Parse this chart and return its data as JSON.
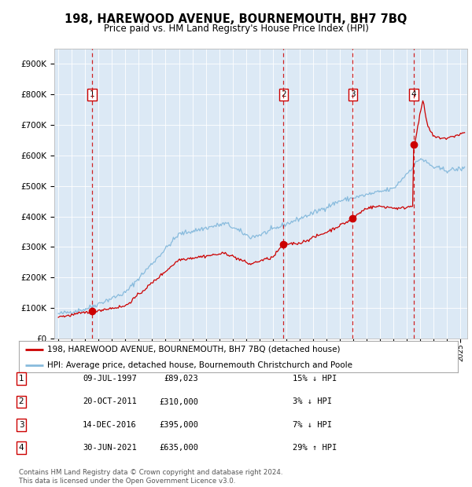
{
  "title": "198, HAREWOOD AVENUE, BOURNEMOUTH, BH7 7BQ",
  "subtitle": "Price paid vs. HM Land Registry's House Price Index (HPI)",
  "plot_bg": "#dce9f5",
  "xlim": [
    1994.7,
    2025.5
  ],
  "ylim": [
    0,
    950000
  ],
  "yticks": [
    0,
    100000,
    200000,
    300000,
    400000,
    500000,
    600000,
    700000,
    800000,
    900000
  ],
  "sale_dates": [
    1997.52,
    2011.8,
    2016.96,
    2021.5
  ],
  "sale_prices": [
    89023,
    310000,
    395000,
    635000
  ],
  "sale_labels": [
    "1",
    "2",
    "3",
    "4"
  ],
  "sale_color": "#cc0000",
  "hpi_color": "#88bbdd",
  "legend_entries": [
    "198, HAREWOOD AVENUE, BOURNEMOUTH, BH7 7BQ (detached house)",
    "HPI: Average price, detached house, Bournemouth Christchurch and Poole"
  ],
  "table_data": [
    [
      "1",
      "09-JUL-1997",
      "£89,023",
      "15% ↓ HPI"
    ],
    [
      "2",
      "20-OCT-2011",
      "£310,000",
      "3% ↓ HPI"
    ],
    [
      "3",
      "14-DEC-2016",
      "£395,000",
      "7% ↓ HPI"
    ],
    [
      "4",
      "30-JUN-2021",
      "£635,000",
      "29% ↑ HPI"
    ]
  ],
  "footer": "Contains HM Land Registry data © Crown copyright and database right 2024.\nThis data is licensed under the Open Government Licence v3.0."
}
